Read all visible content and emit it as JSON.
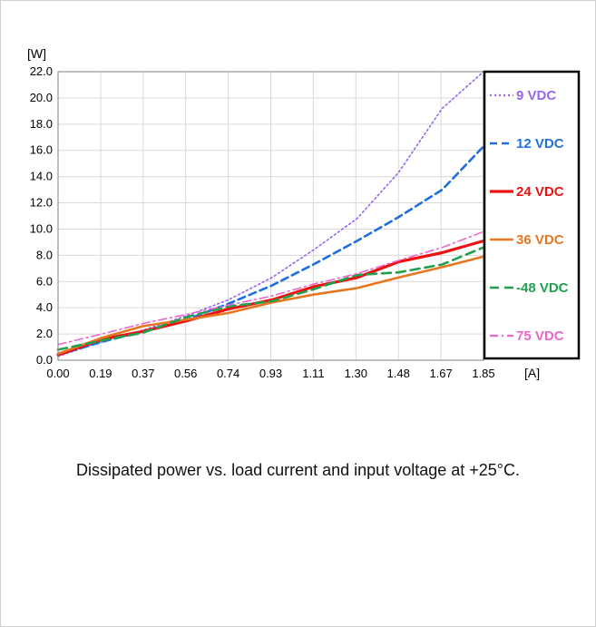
{
  "caption": "Dissipated power vs. load current and input voltage at +25°C.",
  "chart_data": {
    "type": "line",
    "title": "",
    "xlabel": "[A]",
    "ylabel": "[W]",
    "xlim": [
      0,
      1.85
    ],
    "ylim": [
      0,
      22
    ],
    "grid": true,
    "legend_position": "right",
    "x_ticks": [
      "0.00",
      "0.19",
      "0.37",
      "0.56",
      "0.74",
      "0.93",
      "1.11",
      "1.30",
      "1.48",
      "1.67",
      "1.85"
    ],
    "y_ticks": [
      "0.0",
      "2.0",
      "4.0",
      "6.0",
      "8.0",
      "10.0",
      "12.0",
      "14.0",
      "16.0",
      "18.0",
      "20.0",
      "22.0"
    ],
    "x": [
      0.0,
      0.19,
      0.37,
      0.56,
      0.74,
      0.93,
      1.11,
      1.3,
      1.48,
      1.67,
      1.85
    ],
    "series": [
      {
        "name": "9 VDC",
        "color": "#9966ee",
        "dash": "2,3",
        "width": 1.6,
        "values": [
          0.3,
          1.4,
          2.3,
          3.4,
          4.6,
          6.3,
          8.4,
          10.8,
          14.3,
          19.2,
          22.0
        ]
      },
      {
        "name": "12 VDC",
        "color": "#1f6fe0",
        "dash": "8,5",
        "width": 2.6,
        "values": [
          0.4,
          1.4,
          2.2,
          3.1,
          4.3,
          5.7,
          7.3,
          9.1,
          10.9,
          13.0,
          16.3
        ]
      },
      {
        "name": "24 VDC",
        "color": "#ee1111",
        "dash": "",
        "width": 3.2,
        "values": [
          0.4,
          1.6,
          2.2,
          3.0,
          3.9,
          4.6,
          5.6,
          6.3,
          7.5,
          8.2,
          9.1
        ]
      },
      {
        "name": "36 VDC",
        "color": "#e8761e",
        "dash": "",
        "width": 2.6,
        "values": [
          0.5,
          1.7,
          2.6,
          3.1,
          3.6,
          4.4,
          5.0,
          5.5,
          6.3,
          7.1,
          7.9
        ]
      },
      {
        "name": "-48 VDC",
        "color": "#22a050",
        "dash": "10,6",
        "width": 2.6,
        "values": [
          0.8,
          1.5,
          2.1,
          3.3,
          4.1,
          4.5,
          5.4,
          6.5,
          6.7,
          7.3,
          8.6
        ]
      },
      {
        "name": "75 VDC",
        "color": "#ee66cc",
        "dash": "9,4,2,4",
        "width": 1.6,
        "values": [
          1.2,
          2.0,
          2.8,
          3.5,
          4.2,
          4.9,
          5.8,
          6.6,
          7.6,
          8.6,
          9.8
        ]
      }
    ]
  }
}
